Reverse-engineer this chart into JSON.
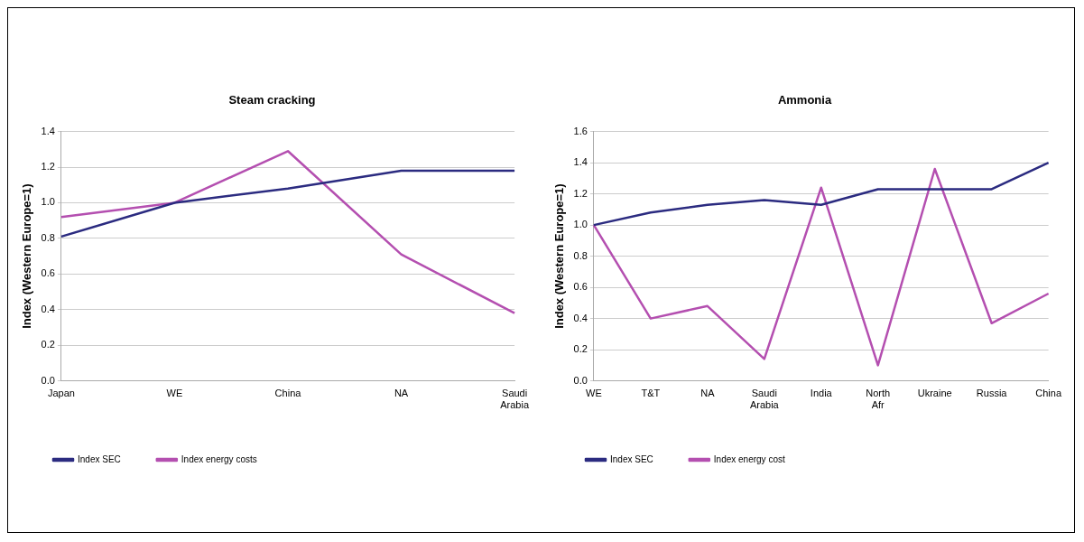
{
  "chart_data": [
    {
      "type": "line",
      "title": "Steam cracking",
      "ylabel": "Index (Western Europe=1)",
      "categories": [
        "Japan",
        "WE",
        "China",
        "NA",
        "Saudi Arabia"
      ],
      "series": [
        {
          "name": "Index SEC",
          "color": "#2b2b80",
          "values": [
            0.81,
            1.0,
            1.08,
            1.18,
            1.18
          ]
        },
        {
          "name": "Index energy costs",
          "color": "#b44fb0",
          "values": [
            0.92,
            1.0,
            1.29,
            0.71,
            0.38
          ]
        }
      ],
      "ylim": [
        0,
        1.4
      ],
      "yticks": [
        {
          "value": 0,
          "label": "0.0"
        },
        {
          "value": 0.2,
          "label": "0.2"
        },
        {
          "value": 0.4,
          "label": "0.4"
        },
        {
          "value": 0.6,
          "label": "0.6"
        },
        {
          "value": 0.8,
          "label": "0.8"
        },
        {
          "value": 1,
          "label": "1.0"
        },
        {
          "value": 1.2,
          "label": "1.2"
        },
        {
          "value": 1.4,
          "label": "1.4"
        }
      ],
      "grid": "y",
      "legend": "bottom",
      "marker": "none",
      "line_style": "solid"
    },
    {
      "type": "line",
      "title": "Ammonia",
      "ylabel": "Index (Western Europe=1)",
      "categories": [
        "WE",
        "T&T",
        "NA",
        "Saudi Arabia",
        "India",
        "North Afr",
        "Ukraine",
        "Russia",
        "China"
      ],
      "series": [
        {
          "name": "Index SEC",
          "color": "#2b2b80",
          "values": [
            1.0,
            1.08,
            1.13,
            1.16,
            1.13,
            1.23,
            1.23,
            1.23,
            1.4
          ]
        },
        {
          "name": "Index energy cost",
          "color": "#b44fb0",
          "values": [
            1.0,
            0.4,
            0.48,
            0.14,
            1.24,
            0.1,
            1.36,
            0.37,
            0.56
          ]
        }
      ],
      "ylim": [
        0,
        1.6
      ],
      "yticks": [
        {
          "value": 0,
          "label": "0.0"
        },
        {
          "value": 0.2,
          "label": "0.2"
        },
        {
          "value": 0.4,
          "label": "0.4"
        },
        {
          "value": 0.6,
          "label": "0.6"
        },
        {
          "value": 0.8,
          "label": "0.8"
        },
        {
          "value": 1,
          "label": "1.0"
        },
        {
          "value": 1.2,
          "label": "1.2"
        },
        {
          "value": 1.4,
          "label": "1.4"
        },
        {
          "value": 1.6,
          "label": "1.6"
        }
      ],
      "grid": "y",
      "legend": "bottom",
      "marker": "none",
      "line_style": "solid"
    }
  ]
}
